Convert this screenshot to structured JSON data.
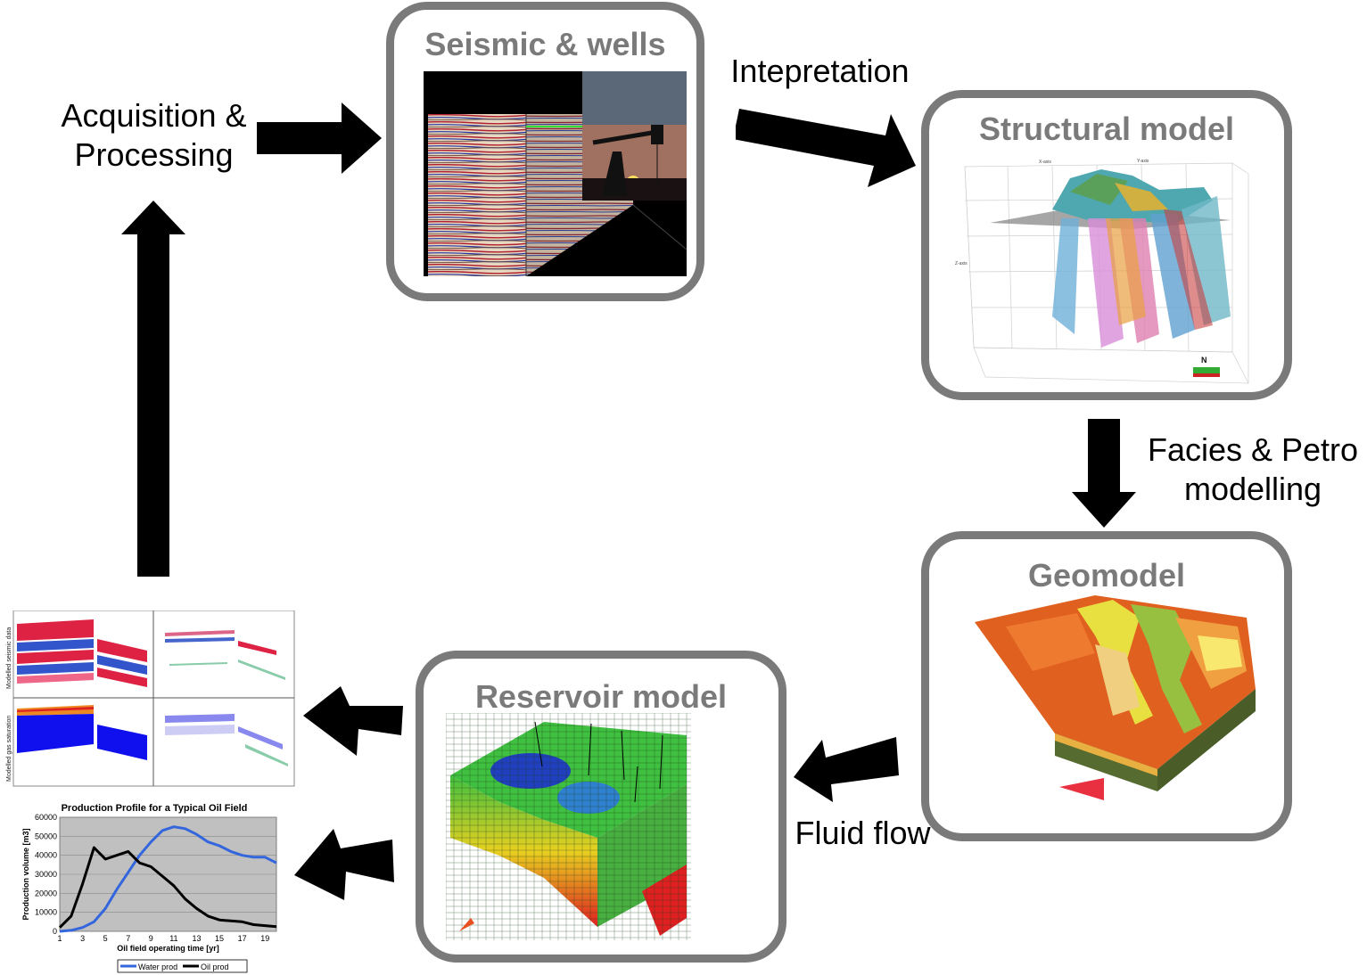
{
  "boxes": {
    "seismic": {
      "title": "Seismic & wells"
    },
    "structural": {
      "title": "Structural model"
    },
    "geomodel": {
      "title": "Geomodel"
    },
    "reservoir": {
      "title": "Reservoir model"
    }
  },
  "steps": {
    "acquisition": [
      "Acquisition &",
      "Processing"
    ],
    "interpretation": "Intepretation",
    "facies": [
      "Facies & Petro",
      "modelling"
    ],
    "fluid_flow": "Fluid flow"
  },
  "structural_axes": {
    "x": "X-axis",
    "y": "Y-axis",
    "z": "Z-axis",
    "north": "N"
  },
  "seismic_panels": {
    "row1_label": "Modelled seismic data",
    "row2_label": "Modelled gas saturation"
  },
  "chart_data": {
    "type": "line",
    "title": "Production Profile for a Typical Oil Field",
    "xlabel": "Oil field operating time [yr]",
    "ylabel": "Production volume [m3]",
    "xlim": [
      1,
      20
    ],
    "ylim": [
      0,
      60000
    ],
    "x_ticks": [
      "1",
      "3",
      "5",
      "7",
      "9",
      "11",
      "13",
      "15",
      "17",
      "19"
    ],
    "y_ticks": [
      "0",
      "10000",
      "20000",
      "30000",
      "40000",
      "50000",
      "60000"
    ],
    "x": [
      1,
      2,
      3,
      4,
      5,
      6,
      7,
      8,
      9,
      10,
      11,
      12,
      13,
      14,
      15,
      16,
      17,
      18,
      19,
      20
    ],
    "series": [
      {
        "name": "Water prod",
        "color": "#3366dd",
        "values": [
          0,
          500,
          2000,
          5000,
          12000,
          22000,
          31000,
          40000,
          47000,
          53000,
          55000,
          54000,
          51000,
          47000,
          45000,
          42000,
          40000,
          39000,
          39000,
          36000
        ]
      },
      {
        "name": "Oil prod",
        "color": "#000000",
        "values": [
          2000,
          8000,
          25000,
          44000,
          38000,
          40000,
          42000,
          36000,
          34000,
          29000,
          24000,
          17000,
          12000,
          8000,
          6000,
          5500,
          5000,
          3500,
          3000,
          2500
        ]
      }
    ],
    "grid": true,
    "legend": "bottom"
  }
}
